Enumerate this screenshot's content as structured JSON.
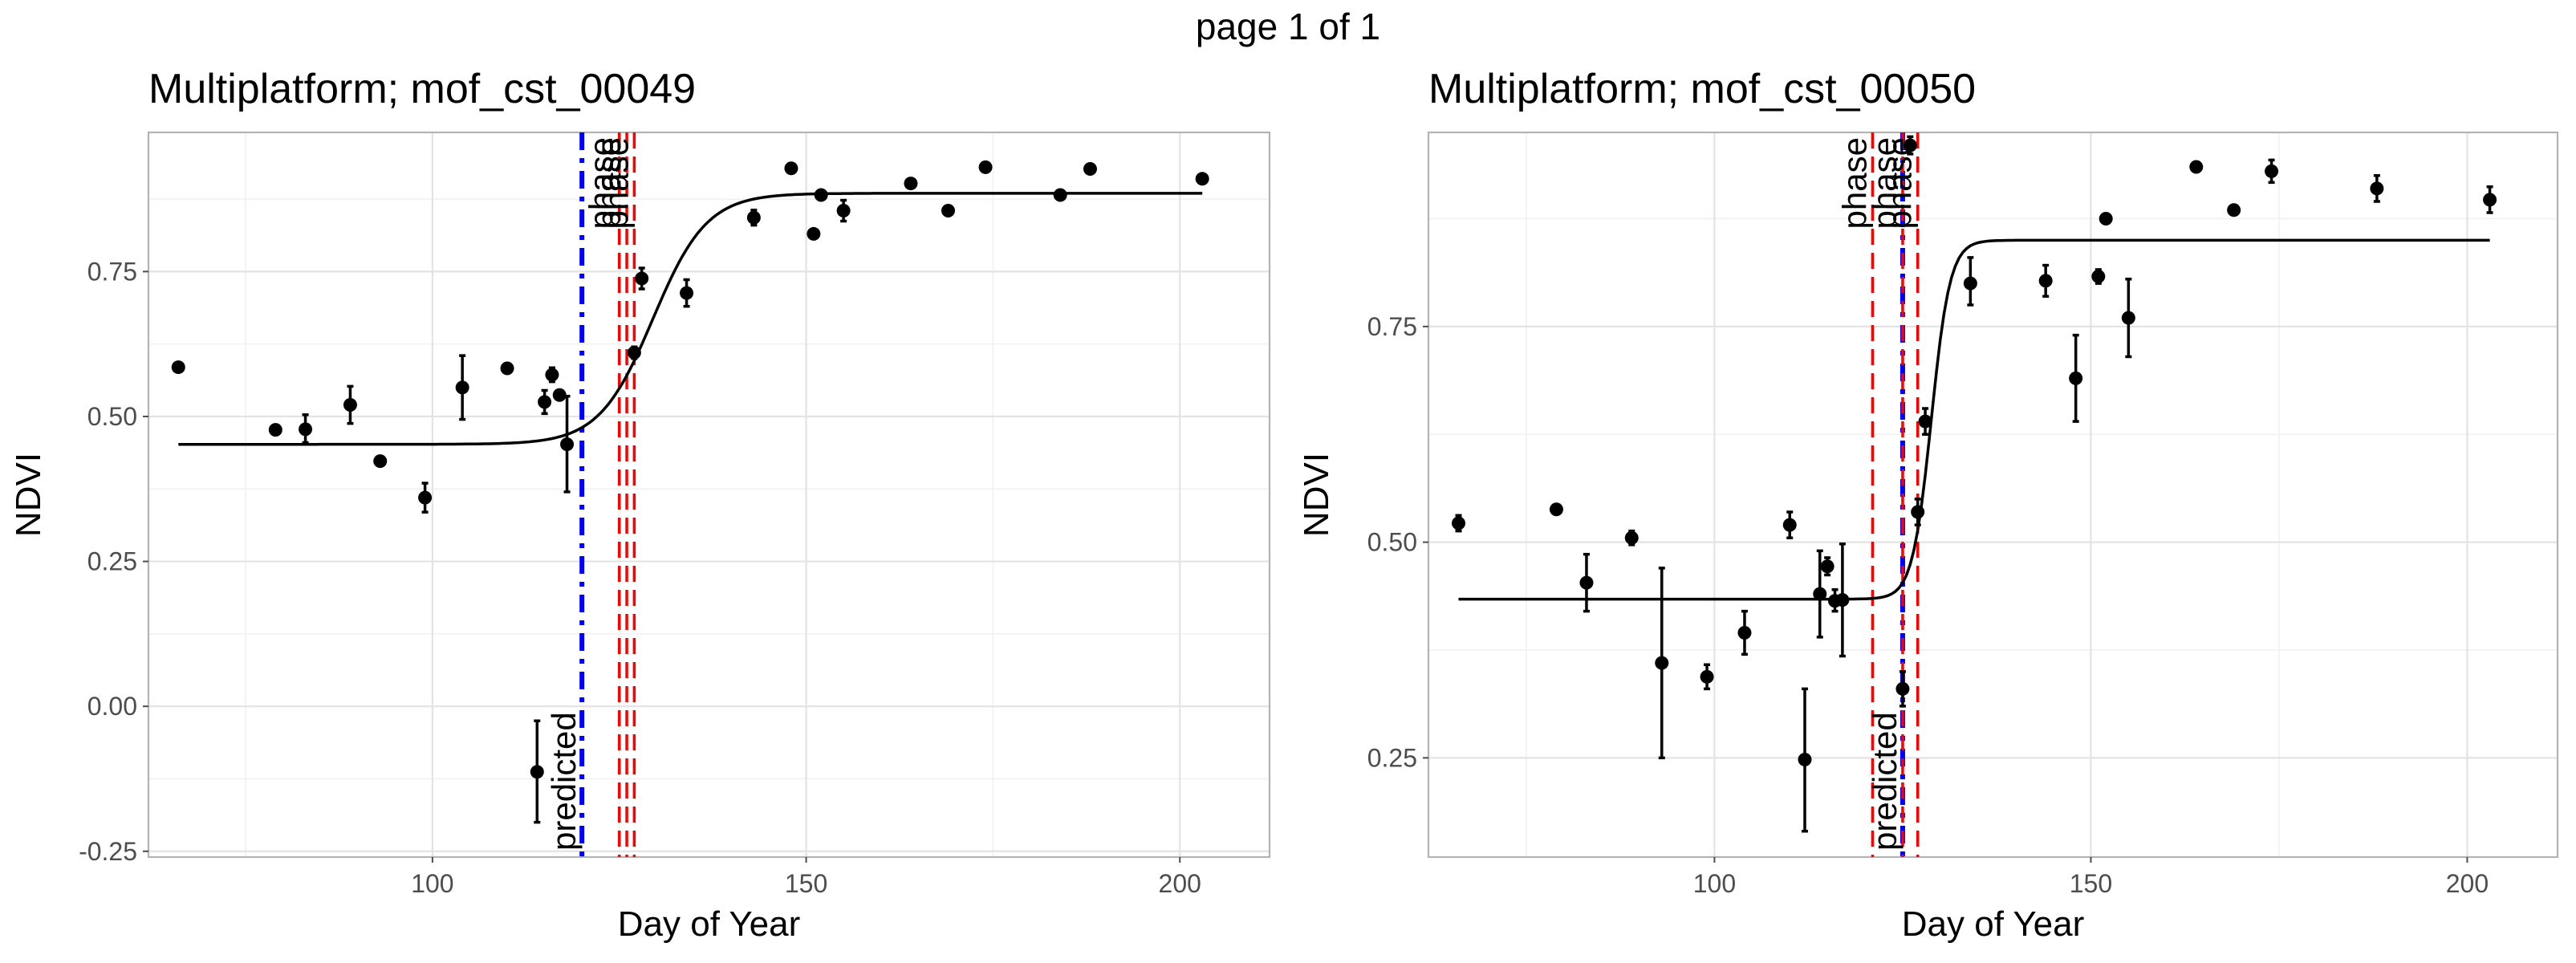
{
  "page_title": "page 1 of 1",
  "chart_data": [
    {
      "type": "scatter",
      "title": "Multiplatform; mof_cst_00049",
      "xlabel": "Day of Year",
      "ylabel": "NDVI",
      "xlim": [
        62,
        212
      ],
      "ylim": [
        -0.26,
        0.99
      ],
      "x_ticks": [
        100,
        150,
        200
      ],
      "x_tick_labels": [
        "100",
        "150",
        "200"
      ],
      "y_ticks": [
        -0.25,
        0.0,
        0.25,
        0.5,
        0.75
      ],
      "y_tick_labels": [
        "-0.25",
        "0.00",
        "0.25",
        "0.50",
        "0.75"
      ],
      "grid": true,
      "points": [
        {
          "x": 66,
          "y": 0.585,
          "lo": null,
          "hi": null
        },
        {
          "x": 79,
          "y": 0.477,
          "lo": null,
          "hi": null
        },
        {
          "x": 83,
          "y": 0.478,
          "lo": 0.455,
          "hi": 0.503
        },
        {
          "x": 89,
          "y": 0.52,
          "lo": 0.488,
          "hi": 0.552
        },
        {
          "x": 93,
          "y": 0.423,
          "lo": null,
          "hi": null
        },
        {
          "x": 99,
          "y": 0.36,
          "lo": 0.335,
          "hi": 0.385
        },
        {
          "x": 104,
          "y": 0.55,
          "lo": 0.495,
          "hi": 0.605
        },
        {
          "x": 110,
          "y": 0.583,
          "lo": null,
          "hi": null
        },
        {
          "x": 114,
          "y": -0.113,
          "lo": -0.2,
          "hi": -0.025
        },
        {
          "x": 115,
          "y": 0.525,
          "lo": 0.505,
          "hi": 0.545
        },
        {
          "x": 116,
          "y": 0.572,
          "lo": 0.56,
          "hi": 0.584
        },
        {
          "x": 117,
          "y": 0.537,
          "lo": null,
          "hi": null
        },
        {
          "x": 118,
          "y": 0.452,
          "lo": 0.37,
          "hi": 0.535
        },
        {
          "x": 127,
          "y": 0.61,
          "lo": 0.6,
          "hi": 0.62
        },
        {
          "x": 128,
          "y": 0.738,
          "lo": 0.72,
          "hi": 0.756
        },
        {
          "x": 134,
          "y": 0.713,
          "lo": 0.69,
          "hi": 0.736
        },
        {
          "x": 143,
          "y": 0.843,
          "lo": 0.83,
          "hi": 0.856
        },
        {
          "x": 148,
          "y": 0.928,
          "lo": null,
          "hi": null
        },
        {
          "x": 151,
          "y": 0.815,
          "lo": null,
          "hi": null
        },
        {
          "x": 152,
          "y": 0.882,
          "lo": null,
          "hi": null
        },
        {
          "x": 155,
          "y": 0.855,
          "lo": 0.837,
          "hi": 0.873
        },
        {
          "x": 164,
          "y": 0.902,
          "lo": null,
          "hi": null
        },
        {
          "x": 169,
          "y": 0.855,
          "lo": null,
          "hi": null
        },
        {
          "x": 174,
          "y": 0.93,
          "lo": null,
          "hi": null
        },
        {
          "x": 184,
          "y": 0.882,
          "lo": null,
          "hi": null
        },
        {
          "x": 188,
          "y": 0.927,
          "lo": null,
          "hi": null
        },
        {
          "x": 203,
          "y": 0.91,
          "lo": null,
          "hi": null
        }
      ],
      "fit_curve": {
        "base": 0.452,
        "top": 0.885,
        "midpoint": 129.5,
        "scale": 3.6,
        "x_start": 66,
        "x_end": 203
      },
      "vlines": [
        {
          "x": 120,
          "kind": "predicted",
          "color": "#0000ff",
          "style": "dashdot",
          "label": "predicted",
          "label_pos": "bottom"
        },
        {
          "x": 125,
          "kind": "phase",
          "color": "#ff0000",
          "style": "dashed",
          "label": "phase",
          "label_pos": "top"
        },
        {
          "x": 126,
          "kind": "phase",
          "color": "#ff0000",
          "style": "dashed",
          "label": "phase",
          "label_pos": "top"
        },
        {
          "x": 127,
          "kind": "phase",
          "color": "#ff0000",
          "style": "dashed",
          "label": "phase",
          "label_pos": "top"
        }
      ]
    },
    {
      "type": "scatter",
      "title": "Multiplatform; mof_cst_00050",
      "xlabel": "Day of Year",
      "ylabel": "NDVI",
      "xlim": [
        62,
        212
      ],
      "ylim": [
        0.135,
        0.975
      ],
      "x_ticks": [
        100,
        150,
        200
      ],
      "x_tick_labels": [
        "100",
        "150",
        "200"
      ],
      "y_ticks": [
        0.25,
        0.5,
        0.75
      ],
      "y_tick_labels": [
        "0.25",
        "0.50",
        "0.75"
      ],
      "grid": true,
      "points": [
        {
          "x": 66,
          "y": 0.522,
          "lo": 0.513,
          "hi": 0.531
        },
        {
          "x": 79,
          "y": 0.538,
          "lo": null,
          "hi": null
        },
        {
          "x": 83,
          "y": 0.453,
          "lo": 0.42,
          "hi": 0.486
        },
        {
          "x": 89,
          "y": 0.505,
          "lo": 0.497,
          "hi": 0.513
        },
        {
          "x": 93,
          "y": 0.36,
          "lo": 0.25,
          "hi": 0.47
        },
        {
          "x": 99,
          "y": 0.344,
          "lo": 0.33,
          "hi": 0.358
        },
        {
          "x": 104,
          "y": 0.395,
          "lo": 0.37,
          "hi": 0.42
        },
        {
          "x": 110,
          "y": 0.52,
          "lo": 0.505,
          "hi": 0.535
        },
        {
          "x": 112,
          "y": 0.248,
          "lo": 0.165,
          "hi": 0.33
        },
        {
          "x": 114,
          "y": 0.44,
          "lo": 0.39,
          "hi": 0.49
        },
        {
          "x": 115,
          "y": 0.472,
          "lo": 0.462,
          "hi": 0.482
        },
        {
          "x": 116,
          "y": 0.432,
          "lo": 0.42,
          "hi": 0.445
        },
        {
          "x": 117,
          "y": 0.433,
          "lo": 0.368,
          "hi": 0.498
        },
        {
          "x": 125,
          "y": 0.33,
          "lo": 0.31,
          "hi": 0.35
        },
        {
          "x": 126,
          "y": 0.96,
          "lo": 0.95,
          "hi": 0.97
        },
        {
          "x": 127,
          "y": 0.535,
          "lo": 0.52,
          "hi": 0.55
        },
        {
          "x": 128,
          "y": 0.64,
          "lo": 0.625,
          "hi": 0.655
        },
        {
          "x": 134,
          "y": 0.8,
          "lo": 0.775,
          "hi": 0.83
        },
        {
          "x": 144,
          "y": 0.803,
          "lo": 0.785,
          "hi": 0.821
        },
        {
          "x": 148,
          "y": 0.69,
          "lo": 0.64,
          "hi": 0.74
        },
        {
          "x": 151,
          "y": 0.808,
          "lo": 0.8,
          "hi": 0.816
        },
        {
          "x": 152,
          "y": 0.875,
          "lo": null,
          "hi": null
        },
        {
          "x": 155,
          "y": 0.76,
          "lo": 0.715,
          "hi": 0.805
        },
        {
          "x": 164,
          "y": 0.935,
          "lo": null,
          "hi": null
        },
        {
          "x": 169,
          "y": 0.885,
          "lo": null,
          "hi": null
        },
        {
          "x": 174,
          "y": 0.93,
          "lo": 0.917,
          "hi": 0.943
        },
        {
          "x": 188,
          "y": 0.91,
          "lo": 0.895,
          "hi": 0.925
        },
        {
          "x": 203,
          "y": 0.897,
          "lo": 0.882,
          "hi": 0.912
        }
      ],
      "fit_curve": {
        "base": 0.434,
        "top": 0.85,
        "midpoint": 128.8,
        "scale": 1.25,
        "x_start": 66,
        "x_end": 203
      },
      "vlines": [
        {
          "x": 125,
          "kind": "predicted",
          "color": "#0000ff",
          "style": "dashdot",
          "label": "predicted",
          "label_pos": "bottom"
        },
        {
          "x": 121,
          "kind": "phase",
          "color": "#ff0000",
          "style": "dashed",
          "label": "phase",
          "label_pos": "top"
        },
        {
          "x": 125,
          "kind": "phase",
          "color": "#ff0000",
          "style": "dashed",
          "label": "phase",
          "label_pos": "top"
        },
        {
          "x": 127,
          "kind": "phase",
          "color": "#ff0000",
          "style": "dashed",
          "label": "phase",
          "label_pos": "top"
        }
      ]
    }
  ]
}
